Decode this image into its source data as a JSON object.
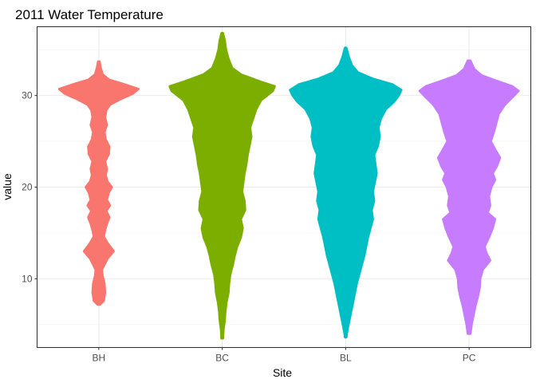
{
  "chart_data": {
    "type": "violin-beeswarm",
    "title": "2011 Water Temperature",
    "xlabel": "Site",
    "ylabel": "value",
    "categories": [
      "BH",
      "BC",
      "BL",
      "PC"
    ],
    "colors": [
      "#F8766D",
      "#7CAE00",
      "#00BFC4",
      "#C77CFF"
    ],
    "ylim": [
      2.5,
      37.5
    ],
    "y_ticks": [
      10,
      20,
      30
    ],
    "grid": true,
    "legend": "none",
    "series": [
      {
        "name": "BH",
        "min": 7.2,
        "max": 33.7,
        "profile": [
          [
            7.2,
            0.02
          ],
          [
            7.6,
            0.08
          ],
          [
            8.5,
            0.1
          ],
          [
            9.5,
            0.09
          ],
          [
            10.3,
            0.06
          ],
          [
            11.0,
            0.05
          ],
          [
            12.2,
            0.14
          ],
          [
            13.0,
            0.24
          ],
          [
            13.8,
            0.15
          ],
          [
            14.6,
            0.08
          ],
          [
            15.3,
            0.1
          ],
          [
            16.0,
            0.13
          ],
          [
            16.7,
            0.17
          ],
          [
            17.4,
            0.12
          ],
          [
            18.0,
            0.18
          ],
          [
            18.6,
            0.13
          ],
          [
            19.4,
            0.16
          ],
          [
            20.0,
            0.21
          ],
          [
            20.6,
            0.14
          ],
          [
            21.3,
            0.11
          ],
          [
            22.0,
            0.13
          ],
          [
            22.8,
            0.1
          ],
          [
            23.6,
            0.16
          ],
          [
            24.4,
            0.17
          ],
          [
            25.2,
            0.11
          ],
          [
            26.0,
            0.09
          ],
          [
            26.8,
            0.13
          ],
          [
            27.6,
            0.1
          ],
          [
            28.4,
            0.12
          ],
          [
            29.0,
            0.18
          ],
          [
            29.6,
            0.35
          ],
          [
            30.2,
            0.55
          ],
          [
            30.7,
            0.64
          ],
          [
            31.2,
            0.42
          ],
          [
            31.7,
            0.17
          ],
          [
            32.3,
            0.06
          ],
          [
            33.0,
            0.03
          ],
          [
            33.7,
            0.01
          ]
        ]
      },
      {
        "name": "BC",
        "min": 3.5,
        "max": 36.8,
        "profile": [
          [
            3.5,
            0.01
          ],
          [
            4.5,
            0.02
          ],
          [
            5.5,
            0.04
          ],
          [
            6.5,
            0.05
          ],
          [
            7.5,
            0.07
          ],
          [
            8.5,
            0.1
          ],
          [
            9.5,
            0.11
          ],
          [
            10.5,
            0.13
          ],
          [
            11.5,
            0.17
          ],
          [
            12.5,
            0.2
          ],
          [
            13.5,
            0.24
          ],
          [
            14.5,
            0.3
          ],
          [
            15.5,
            0.33
          ],
          [
            16.5,
            0.3
          ],
          [
            17.5,
            0.37
          ],
          [
            18.5,
            0.36
          ],
          [
            19.5,
            0.32
          ],
          [
            20.5,
            0.34
          ],
          [
            21.5,
            0.36
          ],
          [
            22.5,
            0.39
          ],
          [
            23.5,
            0.41
          ],
          [
            24.5,
            0.44
          ],
          [
            25.5,
            0.47
          ],
          [
            26.5,
            0.45
          ],
          [
            27.5,
            0.5
          ],
          [
            28.5,
            0.55
          ],
          [
            29.5,
            0.63
          ],
          [
            30.5,
            0.82
          ],
          [
            31.0,
            0.85
          ],
          [
            31.5,
            0.62
          ],
          [
            32.3,
            0.3
          ],
          [
            33.0,
            0.16
          ],
          [
            34.0,
            0.1
          ],
          [
            35.0,
            0.06
          ],
          [
            36.0,
            0.04
          ],
          [
            36.8,
            0.01
          ]
        ]
      },
      {
        "name": "BL",
        "min": 3.7,
        "max": 35.2,
        "profile": [
          [
            3.7,
            0.01
          ],
          [
            4.5,
            0.03
          ],
          [
            5.5,
            0.06
          ],
          [
            6.5,
            0.09
          ],
          [
            7.5,
            0.12
          ],
          [
            8.5,
            0.15
          ],
          [
            9.5,
            0.18
          ],
          [
            10.5,
            0.22
          ],
          [
            11.5,
            0.26
          ],
          [
            12.5,
            0.3
          ],
          [
            13.5,
            0.33
          ],
          [
            14.5,
            0.36
          ],
          [
            15.5,
            0.4
          ],
          [
            16.5,
            0.44
          ],
          [
            17.5,
            0.42
          ],
          [
            18.5,
            0.46
          ],
          [
            19.5,
            0.44
          ],
          [
            20.5,
            0.47
          ],
          [
            21.5,
            0.5
          ],
          [
            22.5,
            0.48
          ],
          [
            23.5,
            0.46
          ],
          [
            24.5,
            0.52
          ],
          [
            25.5,
            0.55
          ],
          [
            26.5,
            0.53
          ],
          [
            27.5,
            0.57
          ],
          [
            28.5,
            0.65
          ],
          [
            29.3,
            0.78
          ],
          [
            30.0,
            0.86
          ],
          [
            30.6,
            0.9
          ],
          [
            31.2,
            0.76
          ],
          [
            31.8,
            0.45
          ],
          [
            32.5,
            0.2
          ],
          [
            33.3,
            0.1
          ],
          [
            34.2,
            0.05
          ],
          [
            35.2,
            0.01
          ]
        ]
      },
      {
        "name": "PC",
        "min": 4.0,
        "max": 33.8,
        "profile": [
          [
            4.0,
            0.02
          ],
          [
            5.0,
            0.04
          ],
          [
            6.0,
            0.07
          ],
          [
            7.0,
            0.1
          ],
          [
            8.0,
            0.14
          ],
          [
            9.0,
            0.17
          ],
          [
            10.0,
            0.18
          ],
          [
            11.0,
            0.22
          ],
          [
            12.0,
            0.34
          ],
          [
            12.8,
            0.28
          ],
          [
            13.5,
            0.25
          ],
          [
            14.5,
            0.32
          ],
          [
            15.5,
            0.38
          ],
          [
            16.5,
            0.42
          ],
          [
            17.2,
            0.3
          ],
          [
            18.0,
            0.34
          ],
          [
            19.0,
            0.32
          ],
          [
            20.0,
            0.36
          ],
          [
            20.8,
            0.42
          ],
          [
            21.5,
            0.38
          ],
          [
            22.3,
            0.45
          ],
          [
            23.2,
            0.5
          ],
          [
            24.0,
            0.43
          ],
          [
            25.0,
            0.35
          ],
          [
            26.0,
            0.4
          ],
          [
            27.0,
            0.44
          ],
          [
            28.0,
            0.48
          ],
          [
            29.0,
            0.58
          ],
          [
            29.8,
            0.7
          ],
          [
            30.5,
            0.8
          ],
          [
            31.0,
            0.7
          ],
          [
            31.6,
            0.44
          ],
          [
            32.2,
            0.2
          ],
          [
            32.9,
            0.08
          ],
          [
            33.8,
            0.02
          ]
        ]
      }
    ],
    "outliers": [
      {
        "series": "BC",
        "y": 3.6
      },
      {
        "series": "BC",
        "y": 4.2
      },
      {
        "series": "BL",
        "y": 3.7
      }
    ]
  }
}
